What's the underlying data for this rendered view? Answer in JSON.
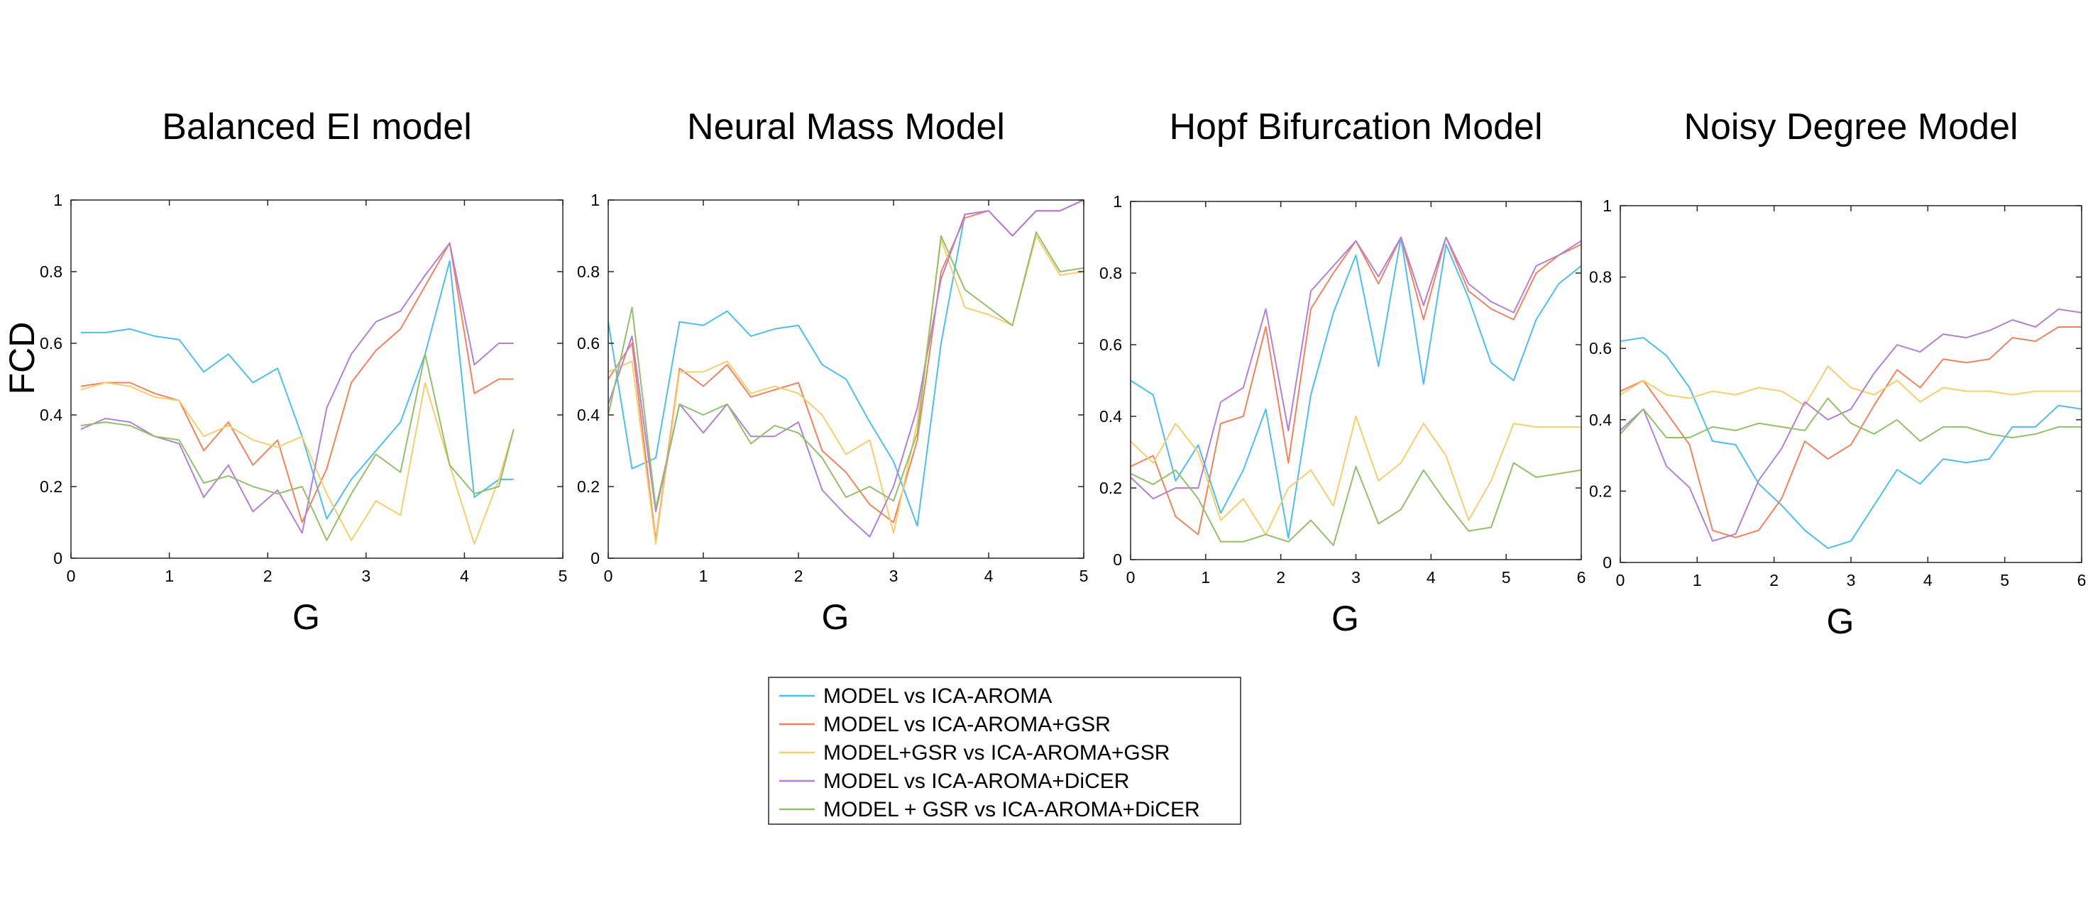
{
  "figure": {
    "ylabel": "FCD",
    "legend": {
      "placement": "bottom-center",
      "entries": [
        {
          "name": "MODEL vs ICA-AROMA",
          "color": "#4DBEEE"
        },
        {
          "name": "MODEL vs ICA-AROMA+GSR",
          "color": "#F0835F"
        },
        {
          "name": "MODEL+GSR vs ICA-AROMA+GSR",
          "color": "#F5CE6E"
        },
        {
          "name": "MODEL vs ICA-AROMA+DiCER",
          "color": "#B57FD6"
        },
        {
          "name": "MODEL + GSR vs ICA-AROMA+DiCER",
          "color": "#92C06A"
        }
      ]
    }
  },
  "chart_data": [
    {
      "type": "line",
      "title": "Balanced EI model",
      "xlabel": "G",
      "ylabel": "FCD",
      "xlim": [
        0,
        5
      ],
      "ylim": [
        0,
        1
      ],
      "xticks": [
        0,
        1,
        2,
        3,
        4,
        5
      ],
      "yticks": [
        0,
        0.2,
        0.4,
        0.6,
        0.8,
        1
      ],
      "grid": false,
      "x": [
        0.1,
        0.35,
        0.6,
        0.85,
        1.1,
        1.35,
        1.6,
        1.85,
        2.1,
        2.35,
        2.6,
        2.85,
        3.1,
        3.35,
        3.6,
        3.85,
        4.1,
        4.35,
        4.5
      ],
      "series": [
        {
          "name": "MODEL vs ICA-AROMA",
          "values": [
            0.63,
            0.63,
            0.64,
            0.62,
            0.61,
            0.52,
            0.57,
            0.49,
            0.53,
            0.34,
            0.11,
            0.22,
            0.3,
            0.38,
            0.57,
            0.83,
            0.17,
            0.22,
            0.22
          ]
        },
        {
          "name": "MODEL vs ICA-AROMA+GSR",
          "values": [
            0.48,
            0.49,
            0.49,
            0.46,
            0.44,
            0.3,
            0.38,
            0.26,
            0.33,
            0.1,
            0.25,
            0.49,
            0.58,
            0.64,
            0.76,
            0.88,
            0.46,
            0.5,
            0.5
          ]
        },
        {
          "name": "MODEL+GSR vs ICA-AROMA+GSR",
          "values": [
            0.47,
            0.49,
            0.48,
            0.45,
            0.44,
            0.34,
            0.37,
            0.33,
            0.31,
            0.34,
            0.18,
            0.05,
            0.16,
            0.12,
            0.49,
            0.26,
            0.04,
            0.22,
            0.36
          ]
        },
        {
          "name": "MODEL vs ICA-AROMA+DiCER",
          "values": [
            0.36,
            0.39,
            0.38,
            0.34,
            0.32,
            0.17,
            0.26,
            0.13,
            0.19,
            0.07,
            0.42,
            0.57,
            0.66,
            0.69,
            0.79,
            0.88,
            0.54,
            0.6,
            0.6
          ]
        },
        {
          "name": "MODEL + GSR vs ICA-AROMA+DiCER",
          "values": [
            0.37,
            0.38,
            0.37,
            0.34,
            0.33,
            0.21,
            0.23,
            0.2,
            0.18,
            0.2,
            0.05,
            0.18,
            0.29,
            0.24,
            0.57,
            0.26,
            0.18,
            0.2,
            0.36
          ]
        }
      ]
    },
    {
      "type": "line",
      "title": "Neural Mass Model",
      "xlabel": "G",
      "ylabel": "",
      "xlim": [
        0,
        5
      ],
      "ylim": [
        0,
        1
      ],
      "xticks": [
        0,
        1,
        2,
        3,
        4,
        5
      ],
      "yticks": [
        0,
        0.2,
        0.4,
        0.6,
        0.8,
        1
      ],
      "grid": false,
      "x": [
        0,
        0.25,
        0.5,
        0.75,
        1.0,
        1.25,
        1.5,
        1.75,
        2.0,
        2.25,
        2.5,
        2.75,
        3.0,
        3.25,
        3.5,
        3.75,
        4.0,
        4.25,
        4.5,
        4.75,
        5.0
      ],
      "series": [
        {
          "name": "MODEL vs ICA-AROMA",
          "values": [
            0.66,
            0.25,
            0.28,
            0.66,
            0.65,
            0.69,
            0.62,
            0.64,
            0.65,
            0.54,
            0.5,
            0.38,
            0.27,
            0.09,
            0.6,
            0.96,
            0.97,
            0.9,
            0.97,
            0.97,
            1.0
          ]
        },
        {
          "name": "MODEL vs ICA-AROMA+GSR",
          "values": [
            0.5,
            0.6,
            0.05,
            0.53,
            0.48,
            0.54,
            0.45,
            0.47,
            0.49,
            0.3,
            0.24,
            0.15,
            0.1,
            0.33,
            0.8,
            0.95,
            0.97,
            0.9,
            0.97,
            0.97,
            1.0
          ]
        },
        {
          "name": "MODEL+GSR vs ICA-AROMA+GSR",
          "values": [
            0.52,
            0.55,
            0.04,
            0.52,
            0.52,
            0.55,
            0.46,
            0.48,
            0.46,
            0.4,
            0.29,
            0.33,
            0.07,
            0.38,
            0.89,
            0.7,
            0.68,
            0.65,
            0.9,
            0.79,
            0.8
          ]
        },
        {
          "name": "MODEL vs ICA-AROMA+DiCER",
          "values": [
            0.43,
            0.62,
            0.13,
            0.43,
            0.35,
            0.43,
            0.34,
            0.34,
            0.38,
            0.19,
            0.12,
            0.06,
            0.2,
            0.42,
            0.78,
            0.96,
            0.97,
            0.9,
            0.97,
            0.97,
            1.0
          ]
        },
        {
          "name": "MODEL + GSR vs ICA-AROMA+DiCER",
          "values": [
            0.4,
            0.7,
            0.14,
            0.43,
            0.4,
            0.43,
            0.32,
            0.37,
            0.35,
            0.28,
            0.17,
            0.2,
            0.16,
            0.35,
            0.9,
            0.75,
            0.7,
            0.65,
            0.91,
            0.8,
            0.81
          ]
        }
      ]
    },
    {
      "type": "line",
      "title": "Hopf Bifurcation Model",
      "xlabel": "G",
      "ylabel": "",
      "xlim": [
        0,
        6
      ],
      "ylim": [
        0,
        1
      ],
      "xticks": [
        0,
        1,
        2,
        3,
        4,
        5,
        6
      ],
      "yticks": [
        0,
        0.2,
        0.4,
        0.6,
        0.8,
        1
      ],
      "grid": false,
      "x": [
        0,
        0.3,
        0.6,
        0.9,
        1.2,
        1.5,
        1.8,
        2.1,
        2.4,
        2.7,
        3.0,
        3.3,
        3.6,
        3.9,
        4.2,
        4.5,
        4.8,
        5.1,
        5.4,
        5.7,
        6.0
      ],
      "series": [
        {
          "name": "MODEL vs ICA-AROMA",
          "values": [
            0.5,
            0.46,
            0.22,
            0.32,
            0.13,
            0.25,
            0.42,
            0.06,
            0.46,
            0.69,
            0.85,
            0.54,
            0.9,
            0.49,
            0.88,
            0.73,
            0.55,
            0.5,
            0.67,
            0.77,
            0.82
          ]
        },
        {
          "name": "MODEL vs ICA-AROMA+GSR",
          "values": [
            0.26,
            0.29,
            0.12,
            0.07,
            0.38,
            0.4,
            0.65,
            0.27,
            0.7,
            0.8,
            0.89,
            0.77,
            0.9,
            0.67,
            0.9,
            0.75,
            0.7,
            0.67,
            0.8,
            0.85,
            0.88
          ]
        },
        {
          "name": "MODEL+GSR vs ICA-AROMA+GSR",
          "values": [
            0.33,
            0.27,
            0.38,
            0.3,
            0.11,
            0.17,
            0.07,
            0.2,
            0.25,
            0.15,
            0.4,
            0.22,
            0.27,
            0.38,
            0.29,
            0.11,
            0.22,
            0.38,
            0.37,
            0.37,
            0.37
          ]
        },
        {
          "name": "MODEL vs ICA-AROMA+DiCER",
          "values": [
            0.23,
            0.17,
            0.2,
            0.2,
            0.44,
            0.48,
            0.7,
            0.36,
            0.75,
            0.82,
            0.89,
            0.79,
            0.9,
            0.71,
            0.9,
            0.77,
            0.72,
            0.69,
            0.82,
            0.85,
            0.89
          ]
        },
        {
          "name": "MODEL + GSR vs ICA-AROMA+DiCER",
          "values": [
            0.24,
            0.21,
            0.25,
            0.17,
            0.05,
            0.05,
            0.07,
            0.05,
            0.11,
            0.04,
            0.26,
            0.1,
            0.14,
            0.25,
            0.16,
            0.08,
            0.09,
            0.27,
            0.23,
            0.24,
            0.25
          ]
        }
      ]
    },
    {
      "type": "line",
      "title": "Noisy Degree Model",
      "xlabel": "G",
      "ylabel": "",
      "xlim": [
        0,
        6
      ],
      "ylim": [
        0,
        1
      ],
      "xticks": [
        0,
        1,
        2,
        3,
        4,
        5,
        6
      ],
      "yticks": [
        0,
        0.2,
        0.4,
        0.6,
        0.8,
        1
      ],
      "grid": false,
      "x": [
        0,
        0.3,
        0.6,
        0.9,
        1.2,
        1.5,
        1.8,
        2.1,
        2.4,
        2.7,
        3.0,
        3.3,
        3.6,
        3.9,
        4.2,
        4.5,
        4.8,
        5.1,
        5.4,
        5.7,
        6.0
      ],
      "series": [
        {
          "name": "MODEL vs ICA-AROMA",
          "values": [
            0.62,
            0.63,
            0.58,
            0.49,
            0.34,
            0.33,
            0.22,
            0.16,
            0.09,
            0.04,
            0.06,
            0.16,
            0.26,
            0.22,
            0.29,
            0.28,
            0.29,
            0.38,
            0.38,
            0.44,
            0.43
          ]
        },
        {
          "name": "MODEL vs ICA-AROMA+GSR",
          "values": [
            0.48,
            0.51,
            0.42,
            0.33,
            0.09,
            0.07,
            0.09,
            0.18,
            0.34,
            0.29,
            0.33,
            0.44,
            0.54,
            0.49,
            0.57,
            0.56,
            0.57,
            0.63,
            0.62,
            0.66,
            0.66
          ]
        },
        {
          "name": "MODEL+GSR vs ICA-AROMA+GSR",
          "values": [
            0.47,
            0.51,
            0.47,
            0.46,
            0.48,
            0.47,
            0.49,
            0.48,
            0.44,
            0.55,
            0.49,
            0.47,
            0.51,
            0.45,
            0.49,
            0.48,
            0.48,
            0.47,
            0.48,
            0.48,
            0.48
          ]
        },
        {
          "name": "MODEL vs ICA-AROMA+DiCER",
          "values": [
            0.37,
            0.43,
            0.27,
            0.21,
            0.06,
            0.08,
            0.23,
            0.32,
            0.45,
            0.4,
            0.43,
            0.53,
            0.61,
            0.59,
            0.64,
            0.63,
            0.65,
            0.68,
            0.66,
            0.71,
            0.7
          ]
        },
        {
          "name": "MODEL + GSR vs ICA-AROMA+DiCER",
          "values": [
            0.36,
            0.43,
            0.35,
            0.35,
            0.38,
            0.37,
            0.39,
            0.38,
            0.37,
            0.46,
            0.39,
            0.36,
            0.4,
            0.34,
            0.38,
            0.38,
            0.36,
            0.35,
            0.36,
            0.38,
            0.38
          ]
        }
      ]
    }
  ]
}
